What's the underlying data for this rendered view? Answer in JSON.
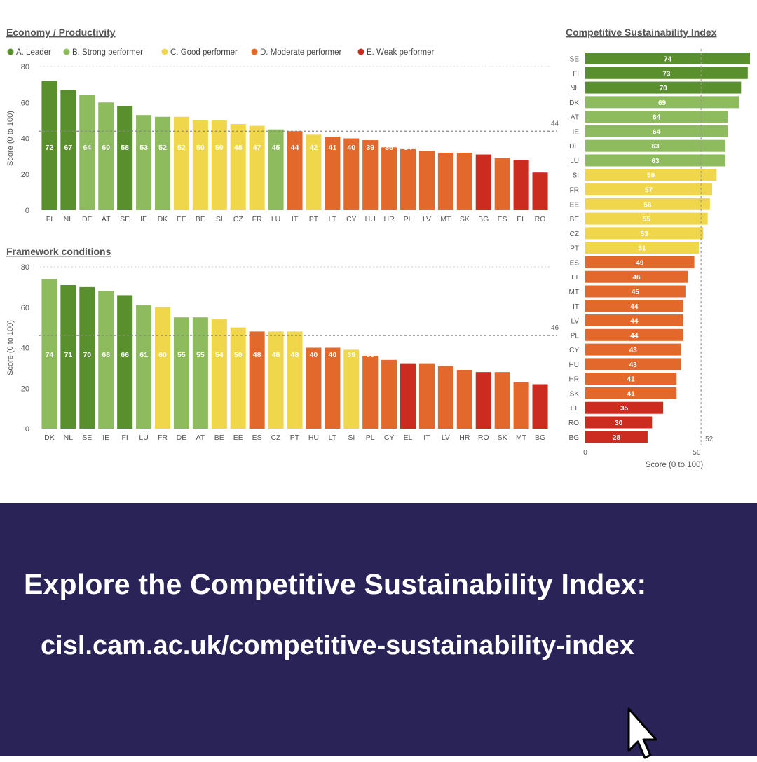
{
  "legend": [
    {
      "label": "A. Leader",
      "color": "#5a8f2e"
    },
    {
      "label": "B. Strong performer",
      "color": "#8dbb5e"
    },
    {
      "label": "C. Good performer",
      "color": "#f0d64a"
    },
    {
      "label": "D. Moderate performer",
      "color": "#e2692b"
    },
    {
      "label": "E. Weak performer",
      "color": "#cc2b20"
    }
  ],
  "chart_data": [
    {
      "type": "bar",
      "title": "Economy / Productivity",
      "xlabel": "",
      "ylabel": "Score (0 to 100)",
      "ylim": [
        0,
        80
      ],
      "yticks": [
        "0",
        "20",
        "40",
        "60",
        "80"
      ],
      "reference_value": 44,
      "reference_label": "44",
      "categories": [
        "FI",
        "NL",
        "DE",
        "AT",
        "SE",
        "IE",
        "DK",
        "EE",
        "BE",
        "SI",
        "CZ",
        "FR",
        "LU",
        "IT",
        "PT",
        "LT",
        "CY",
        "HU",
        "HR",
        "PL",
        "LV",
        "MT",
        "SK",
        "BG",
        "ES",
        "EL",
        "RO"
      ],
      "values": [
        72,
        67,
        64,
        60,
        58,
        53,
        52,
        52,
        50,
        50,
        48,
        47,
        45,
        44,
        42,
        41,
        40,
        39,
        35,
        34,
        33,
        32,
        32,
        31,
        29,
        28,
        21
      ],
      "classes": [
        "A",
        "A",
        "B",
        "B",
        "A",
        "B",
        "B",
        "C",
        "C",
        "C",
        "C",
        "C",
        "B",
        "D",
        "C",
        "D",
        "D",
        "D",
        "D",
        "D",
        "D",
        "D",
        "D",
        "E",
        "D",
        "E",
        "E"
      ]
    },
    {
      "type": "bar",
      "title": "Framework conditions",
      "xlabel": "",
      "ylabel": "Score (0 to 100)",
      "ylim": [
        0,
        80
      ],
      "yticks": [
        "0",
        "20",
        "40",
        "60",
        "80"
      ],
      "reference_value": 46,
      "reference_label": "46",
      "categories": [
        "DK",
        "NL",
        "SE",
        "IE",
        "FI",
        "LU",
        "FR",
        "DE",
        "AT",
        "BE",
        "EE",
        "ES",
        "CZ",
        "PT",
        "HU",
        "LT",
        "SI",
        "PL",
        "CY",
        "EL",
        "IT",
        "LV",
        "HR",
        "RO",
        "SK",
        "MT",
        "BG"
      ],
      "values": [
        74,
        71,
        70,
        68,
        66,
        61,
        60,
        55,
        55,
        54,
        50,
        48,
        48,
        48,
        40,
        40,
        39,
        36,
        34,
        32,
        32,
        31,
        29,
        28,
        28,
        23,
        22
      ],
      "classes": [
        "B",
        "A",
        "A",
        "B",
        "A",
        "B",
        "C",
        "B",
        "B",
        "C",
        "C",
        "D",
        "C",
        "C",
        "D",
        "D",
        "C",
        "D",
        "D",
        "E",
        "D",
        "D",
        "D",
        "E",
        "D",
        "D",
        "E"
      ]
    },
    {
      "type": "bar",
      "orientation": "horizontal",
      "title": "Competitive Sustainability Index",
      "xlabel": "Score (0 to 100)",
      "ylabel": "",
      "xlim": [
        0,
        75
      ],
      "xticks": [
        "0",
        "50"
      ],
      "reference_value": 52,
      "reference_label": "52",
      "categories": [
        "SE",
        "FI",
        "NL",
        "DK",
        "AT",
        "IE",
        "DE",
        "LU",
        "SI",
        "FR",
        "EE",
        "BE",
        "CZ",
        "PT",
        "ES",
        "LT",
        "MT",
        "IT",
        "LV",
        "PL",
        "CY",
        "HU",
        "HR",
        "SK",
        "EL",
        "RO",
        "BG"
      ],
      "values": [
        74,
        73,
        70,
        69,
        64,
        64,
        63,
        63,
        59,
        57,
        56,
        55,
        53,
        51,
        49,
        46,
        45,
        44,
        44,
        44,
        43,
        43,
        41,
        41,
        35,
        30,
        28
      ],
      "classes": [
        "A",
        "A",
        "A",
        "B",
        "B",
        "B",
        "B",
        "B",
        "C",
        "C",
        "C",
        "C",
        "C",
        "C",
        "D",
        "D",
        "D",
        "D",
        "D",
        "D",
        "D",
        "D",
        "D",
        "D",
        "E",
        "E",
        "E"
      ]
    }
  ],
  "colors": {
    "A": "#5a8f2e",
    "B": "#8dbb5e",
    "C": "#f0d64a",
    "D": "#e2692b",
    "E": "#cc2b20"
  },
  "banner": {
    "title": "Explore the Competitive Sustainability Index:",
    "url": "cisl.cam.ac.uk/competitive-sustainability-index"
  },
  "icons": {
    "cursor": "mouse-pointer-icon"
  }
}
